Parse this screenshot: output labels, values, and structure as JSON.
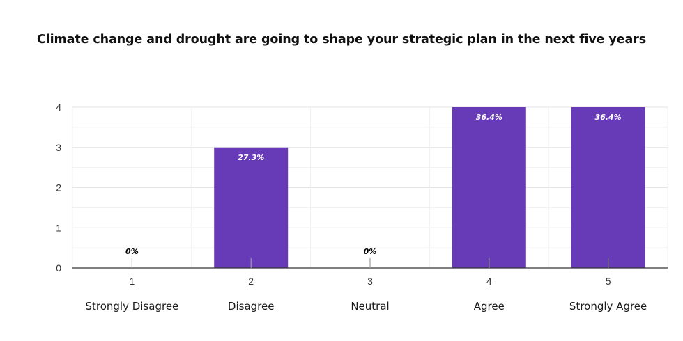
{
  "chart_data": {
    "type": "bar",
    "title": "Climate change and drought are going to shape your strategic plan in the next five years",
    "categories": [
      "1",
      "2",
      "3",
      "4",
      "5"
    ],
    "category_descriptions": [
      "Strongly Disagree",
      "Disagree",
      "Neutral",
      "Agree",
      "Strongly Agree"
    ],
    "values": [
      0,
      3,
      0,
      4,
      4
    ],
    "data_labels": [
      "0%",
      "27.3%",
      "0%",
      "36.4%",
      "36.4%"
    ],
    "yticks": [
      "0",
      "1",
      "2",
      "3",
      "4"
    ],
    "ylim": [
      0,
      4
    ],
    "grid": true,
    "legend": "none",
    "colors": {
      "bar": "#673ab7",
      "grid": "#e6e6e6",
      "axis": "#333333",
      "label_inside": "#ffffff",
      "label_zero": "#000000"
    }
  }
}
